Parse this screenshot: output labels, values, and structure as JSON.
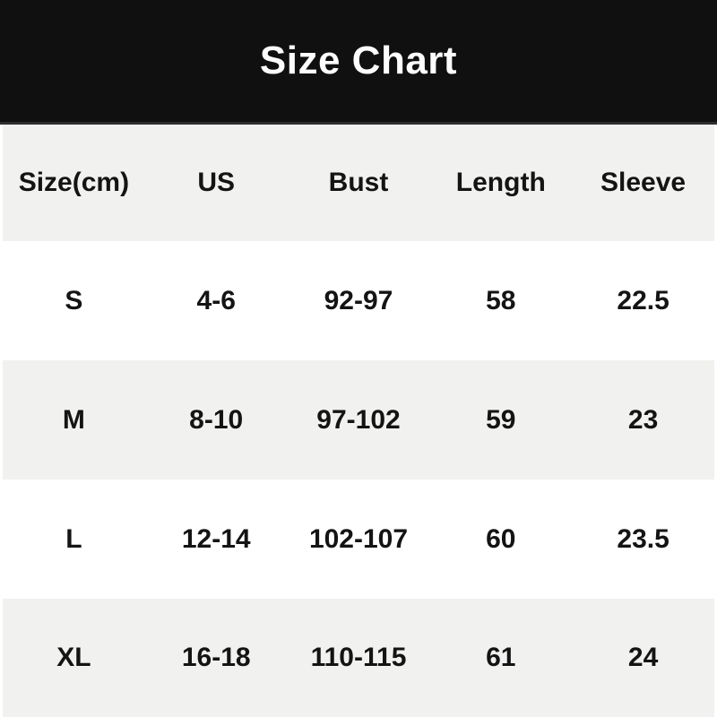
{
  "title": "Size Chart",
  "chart_data": {
    "type": "table",
    "title": "Size Chart",
    "columns": [
      "Size(cm)",
      "US",
      "Bust",
      "Length",
      "Sleeve"
    ],
    "rows": [
      [
        "S",
        "4-6",
        "92-97",
        "58",
        "22.5"
      ],
      [
        "M",
        "8-10",
        "97-102",
        "59",
        "23"
      ],
      [
        "L",
        "12-14",
        "102-107",
        "60",
        "23.5"
      ],
      [
        "XL",
        "16-18",
        "110-115",
        "61",
        "24"
      ]
    ]
  },
  "colors": {
    "banner_bg": "#101010",
    "banner_border": "#2e2e2e",
    "title_color": "#fdfdfd",
    "row_alt_bg": "#f1f1ef",
    "row_plain_bg": "#ffffff",
    "text_color": "#141414"
  }
}
